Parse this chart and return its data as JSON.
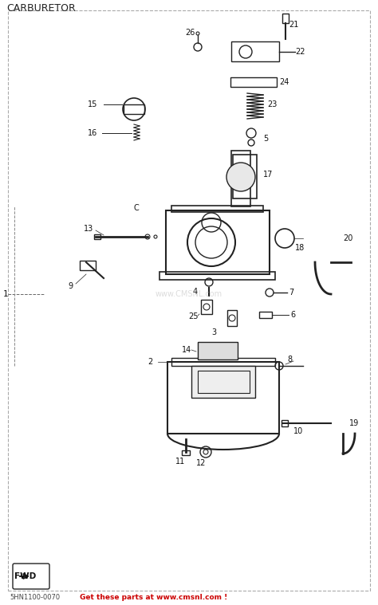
{
  "title": "CARBURETOR",
  "footer_left": "5HN1100-0070",
  "footer_red": "Get these parts at www.cmsnl.com !",
  "watermark": "www.CMSNL.com",
  "fwd_label": "FWD",
  "bg_color": "#ffffff",
  "border_color": "#cccccc",
  "line_color": "#222222",
  "label_color": "#111111",
  "red_color": "#cc0000",
  "gray_color": "#888888",
  "part_numbers": [
    1,
    2,
    3,
    4,
    5,
    6,
    7,
    8,
    9,
    10,
    11,
    12,
    13,
    14,
    15,
    16,
    17,
    18,
    19,
    20,
    21,
    22,
    23,
    24,
    25,
    26
  ],
  "figsize": [
    4.74,
    7.59
  ],
  "dpi": 100
}
